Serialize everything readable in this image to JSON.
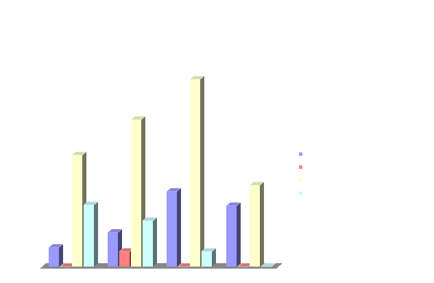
{
  "chart_data": {
    "type": "bar3d",
    "series": [
      {
        "color": "#9999ff",
        "values": [
          28,
          50,
          110,
          89
        ]
      },
      {
        "color": "#ff8080",
        "values": [
          0,
          22,
          0,
          0
        ]
      },
      {
        "color": "#ffffcc",
        "values": [
          163,
          215,
          274,
          119
        ]
      },
      {
        "color": "#ccffff",
        "values": [
          90,
          67,
          22,
          0
        ]
      }
    ],
    "ylim": [
      0,
      300
    ]
  }
}
